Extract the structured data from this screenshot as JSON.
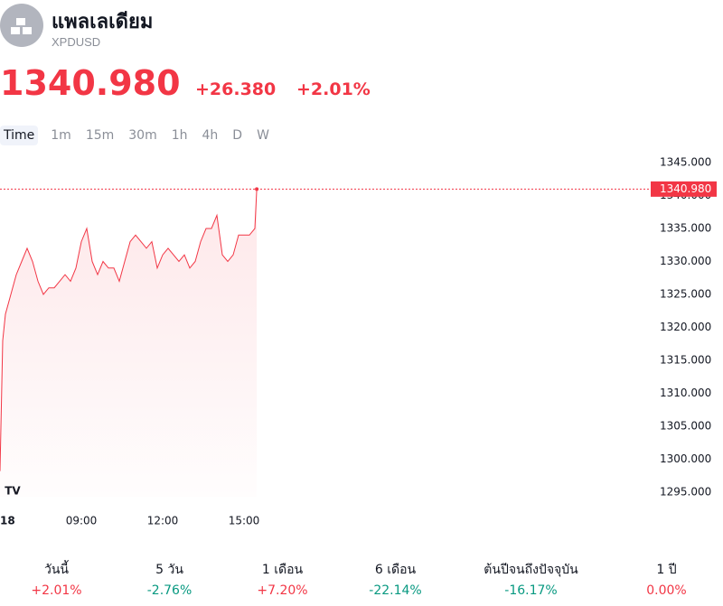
{
  "header": {
    "title": "แพลเลเดียม",
    "symbol": "XPDUSD",
    "price": "1340.980",
    "change": "+26.380",
    "change_pct": "+2.01%"
  },
  "intervals": [
    "Time",
    "1m",
    "15m",
    "30m",
    "1h",
    "4h",
    "D",
    "W"
  ],
  "chart_data": {
    "type": "area",
    "color": "#f23645",
    "x": [
      6.0,
      6.1,
      6.2,
      6.4,
      6.6,
      6.8,
      7.0,
      7.2,
      7.4,
      7.6,
      7.8,
      8.0,
      8.2,
      8.4,
      8.6,
      8.8,
      9.0,
      9.2,
      9.4,
      9.6,
      9.8,
      10.0,
      10.2,
      10.4,
      10.6,
      10.8,
      11.0,
      11.2,
      11.4,
      11.6,
      11.8,
      12.0,
      12.2,
      12.4,
      12.6,
      12.8,
      13.0,
      13.2,
      13.4,
      13.6,
      13.8,
      14.0,
      14.2,
      14.4,
      14.6,
      14.8,
      15.0,
      15.2,
      15.4,
      15.47
    ],
    "values": [
      1298.2,
      1318,
      1322,
      1325,
      1328,
      1330,
      1332,
      1330,
      1327,
      1325,
      1326,
      1326,
      1327,
      1328,
      1327,
      1329,
      1333,
      1335,
      1330,
      1328,
      1330,
      1329,
      1329,
      1327,
      1330,
      1333,
      1334,
      1333,
      1332,
      1333,
      1329,
      1331,
      1332,
      1331,
      1330,
      1331,
      1329,
      1330,
      1333,
      1335,
      1335,
      1337,
      1331,
      1330,
      1331,
      1334,
      1334,
      1334,
      1335,
      1340.98
    ],
    "xlim": [
      6,
      30
    ],
    "ylim": [
      1295,
      1345
    ],
    "xticks": [
      {
        "value": 6,
        "label": "18"
      },
      {
        "value": 9,
        "label": "09:00"
      },
      {
        "value": 12,
        "label": "12:00"
      },
      {
        "value": 15,
        "label": "15:00"
      }
    ],
    "yticks": [
      {
        "value": 1295,
        "label": "1295.000"
      },
      {
        "value": 1300,
        "label": "1300.000"
      },
      {
        "value": 1305,
        "label": "1305.000"
      },
      {
        "value": 1310,
        "label": "1310.000"
      },
      {
        "value": 1315,
        "label": "1315.000"
      },
      {
        "value": 1320,
        "label": "1320.000"
      },
      {
        "value": 1325,
        "label": "1325.000"
      },
      {
        "value": 1330,
        "label": "1330.000"
      },
      {
        "value": 1335,
        "label": "1335.000"
      },
      {
        "value": 1340,
        "label": "1340.000"
      },
      {
        "value": 1345,
        "label": "1345.000"
      }
    ],
    "last_price": {
      "value": 1340.98,
      "label": "1340.980"
    }
  },
  "stats": [
    {
      "label": "วันนี้",
      "value": "+2.01%",
      "color": "#f23645"
    },
    {
      "label": "5 วัน",
      "value": "-2.76%",
      "color": "#089981"
    },
    {
      "label": "1 เดือน",
      "value": "+7.20%",
      "color": "#f23645"
    },
    {
      "label": "6 เดือน",
      "value": "-22.14%",
      "color": "#089981"
    },
    {
      "label": "ต้นปีจนถึงปัจจุบัน",
      "value": "-16.17%",
      "color": "#089981"
    },
    {
      "label": "1 ปี",
      "value": "0.00%",
      "color": "#f23645"
    }
  ]
}
